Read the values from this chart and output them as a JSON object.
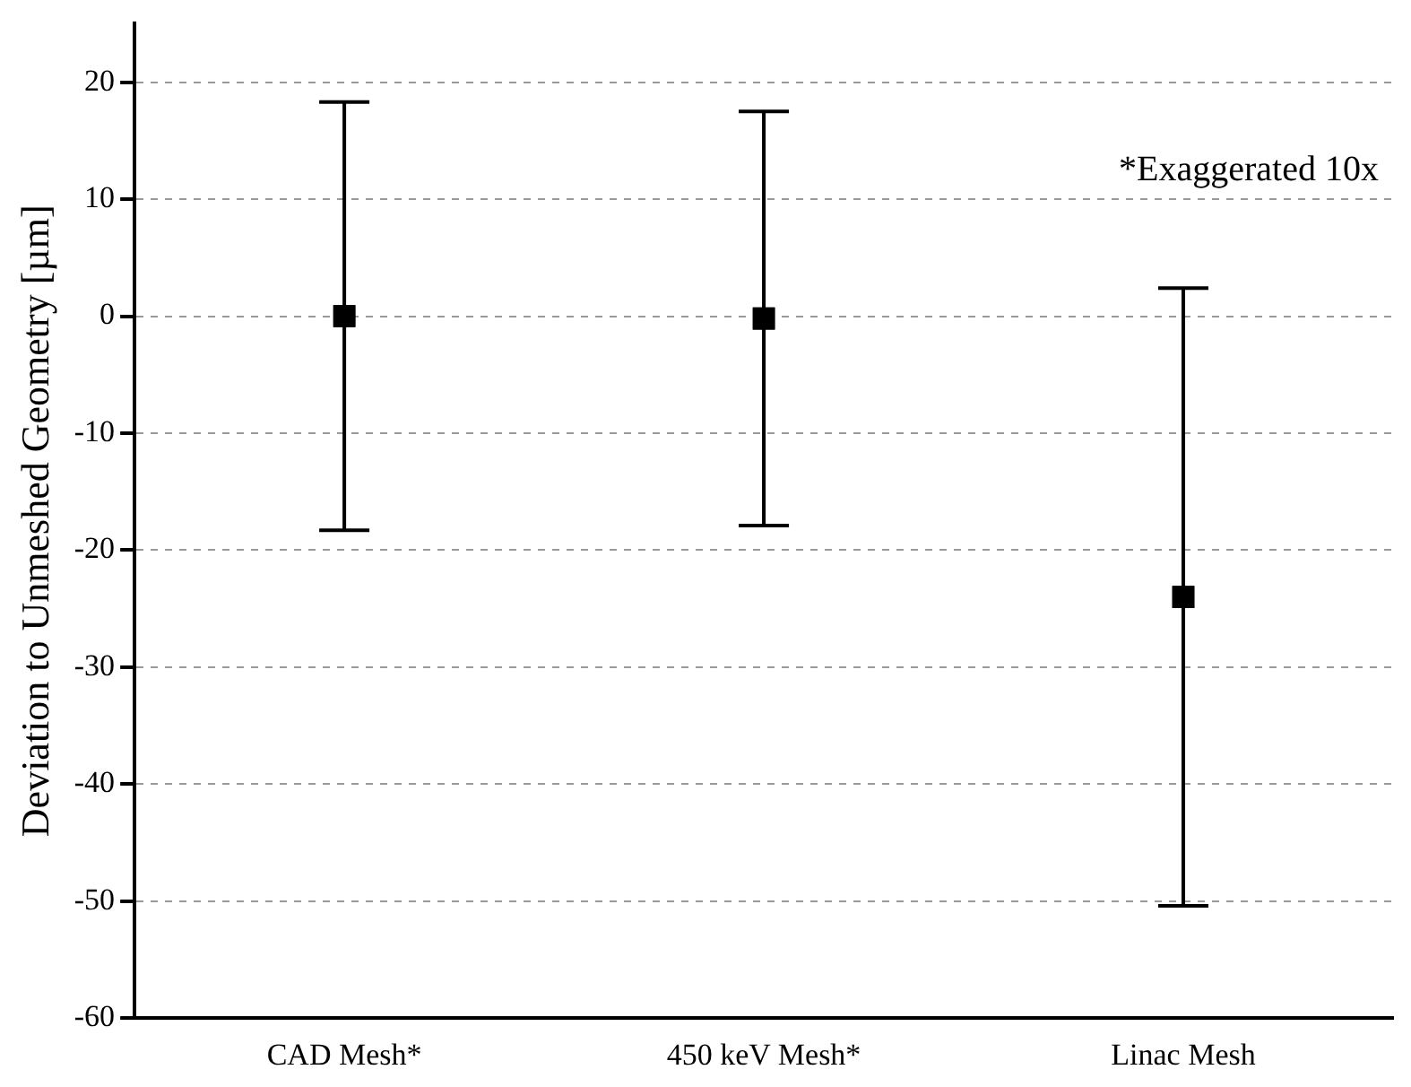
{
  "chart_data": {
    "type": "scatter",
    "ylabel": "Deviation to Unmeshed Geometry [µm]",
    "annotations": [
      "*Exaggerated 10x"
    ],
    "categories": [
      "CAD Mesh*",
      "450 keV Mesh*",
      "Linac Mesh"
    ],
    "values": [
      0,
      -0.2,
      -24
    ],
    "errors": [
      18.3,
      17.7,
      26.4
    ],
    "color": "#000000",
    "marker": "square",
    "ylim": [
      -60,
      25
    ],
    "yticks": [
      -60,
      -50,
      -40,
      -30,
      -20,
      -10,
      0,
      10,
      20
    ],
    "grid": "y",
    "legend": false
  }
}
